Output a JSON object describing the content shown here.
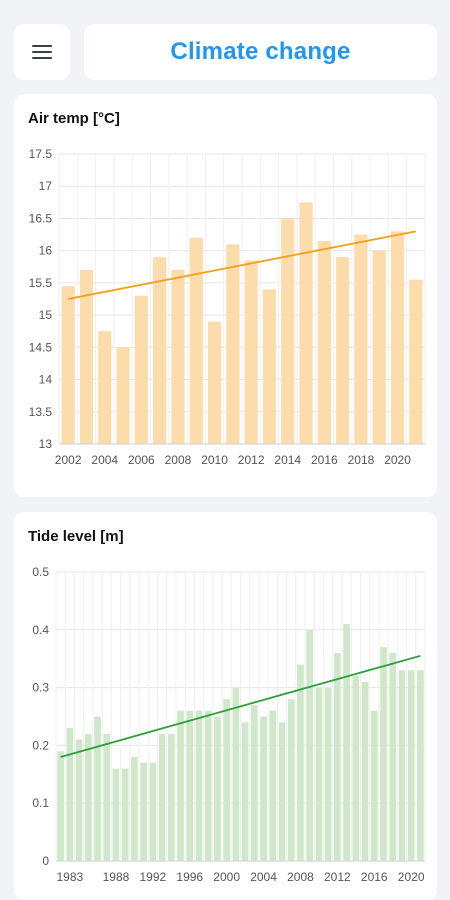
{
  "header": {
    "title": "Climate change",
    "menu_icon": "hamburger-menu-icon"
  },
  "colors": {
    "title": "#2196f3",
    "air_bar": "#fddcab",
    "air_trend": "#f59e1b",
    "tide_bar": "#cfe8c9",
    "tide_trend": "#2e9e3a"
  },
  "chart_data": [
    {
      "type": "bar",
      "title": "Air temp [°C]",
      "categories": [
        2002,
        2003,
        2004,
        2005,
        2006,
        2007,
        2008,
        2009,
        2010,
        2011,
        2012,
        2013,
        2014,
        2015,
        2016,
        2017,
        2018,
        2019,
        2020,
        2021
      ],
      "values": [
        15.45,
        15.7,
        14.75,
        14.5,
        15.3,
        15.9,
        15.7,
        16.2,
        14.9,
        16.1,
        15.85,
        15.4,
        16.5,
        16.75,
        16.15,
        15.9,
        16.25,
        16.0,
        16.3,
        15.55
      ],
      "trend": [
        15.25,
        16.3
      ],
      "xticks": [
        2002,
        2004,
        2006,
        2008,
        2010,
        2012,
        2014,
        2016,
        2018,
        2020
      ],
      "yticks": [
        13,
        13.5,
        14,
        14.5,
        15,
        15.5,
        16,
        16.5,
        17,
        17.5
      ],
      "ylim": [
        13,
        17.5
      ],
      "grid": true
    },
    {
      "type": "bar",
      "title": "Tide level [m]",
      "categories": [
        1982,
        1983,
        1984,
        1985,
        1986,
        1987,
        1988,
        1989,
        1990,
        1991,
        1992,
        1993,
        1994,
        1995,
        1996,
        1997,
        1998,
        1999,
        2000,
        2001,
        2002,
        2003,
        2004,
        2005,
        2006,
        2007,
        2008,
        2009,
        2010,
        2011,
        2012,
        2013,
        2014,
        2015,
        2016,
        2017,
        2018,
        2019,
        2020,
        2021
      ],
      "values": [
        0.19,
        0.23,
        0.21,
        0.22,
        0.25,
        0.22,
        0.16,
        0.16,
        0.18,
        0.17,
        0.17,
        0.22,
        0.22,
        0.26,
        0.26,
        0.26,
        0.26,
        0.25,
        0.28,
        0.3,
        0.24,
        0.27,
        0.25,
        0.26,
        0.24,
        0.28,
        0.34,
        0.4,
        0.3,
        0.3,
        0.36,
        0.41,
        0.32,
        0.31,
        0.26,
        0.37,
        0.36,
        0.33,
        0.33,
        0.33
      ],
      "trend": [
        0.18,
        0.355
      ],
      "xticks": [
        1983,
        1988,
        1992,
        1996,
        2000,
        2004,
        2008,
        2012,
        2016,
        2020
      ],
      "yticks": [
        0,
        0.1,
        0.2,
        0.3,
        0.4,
        0.5
      ],
      "ylim": [
        0,
        0.5
      ],
      "grid": true
    }
  ]
}
